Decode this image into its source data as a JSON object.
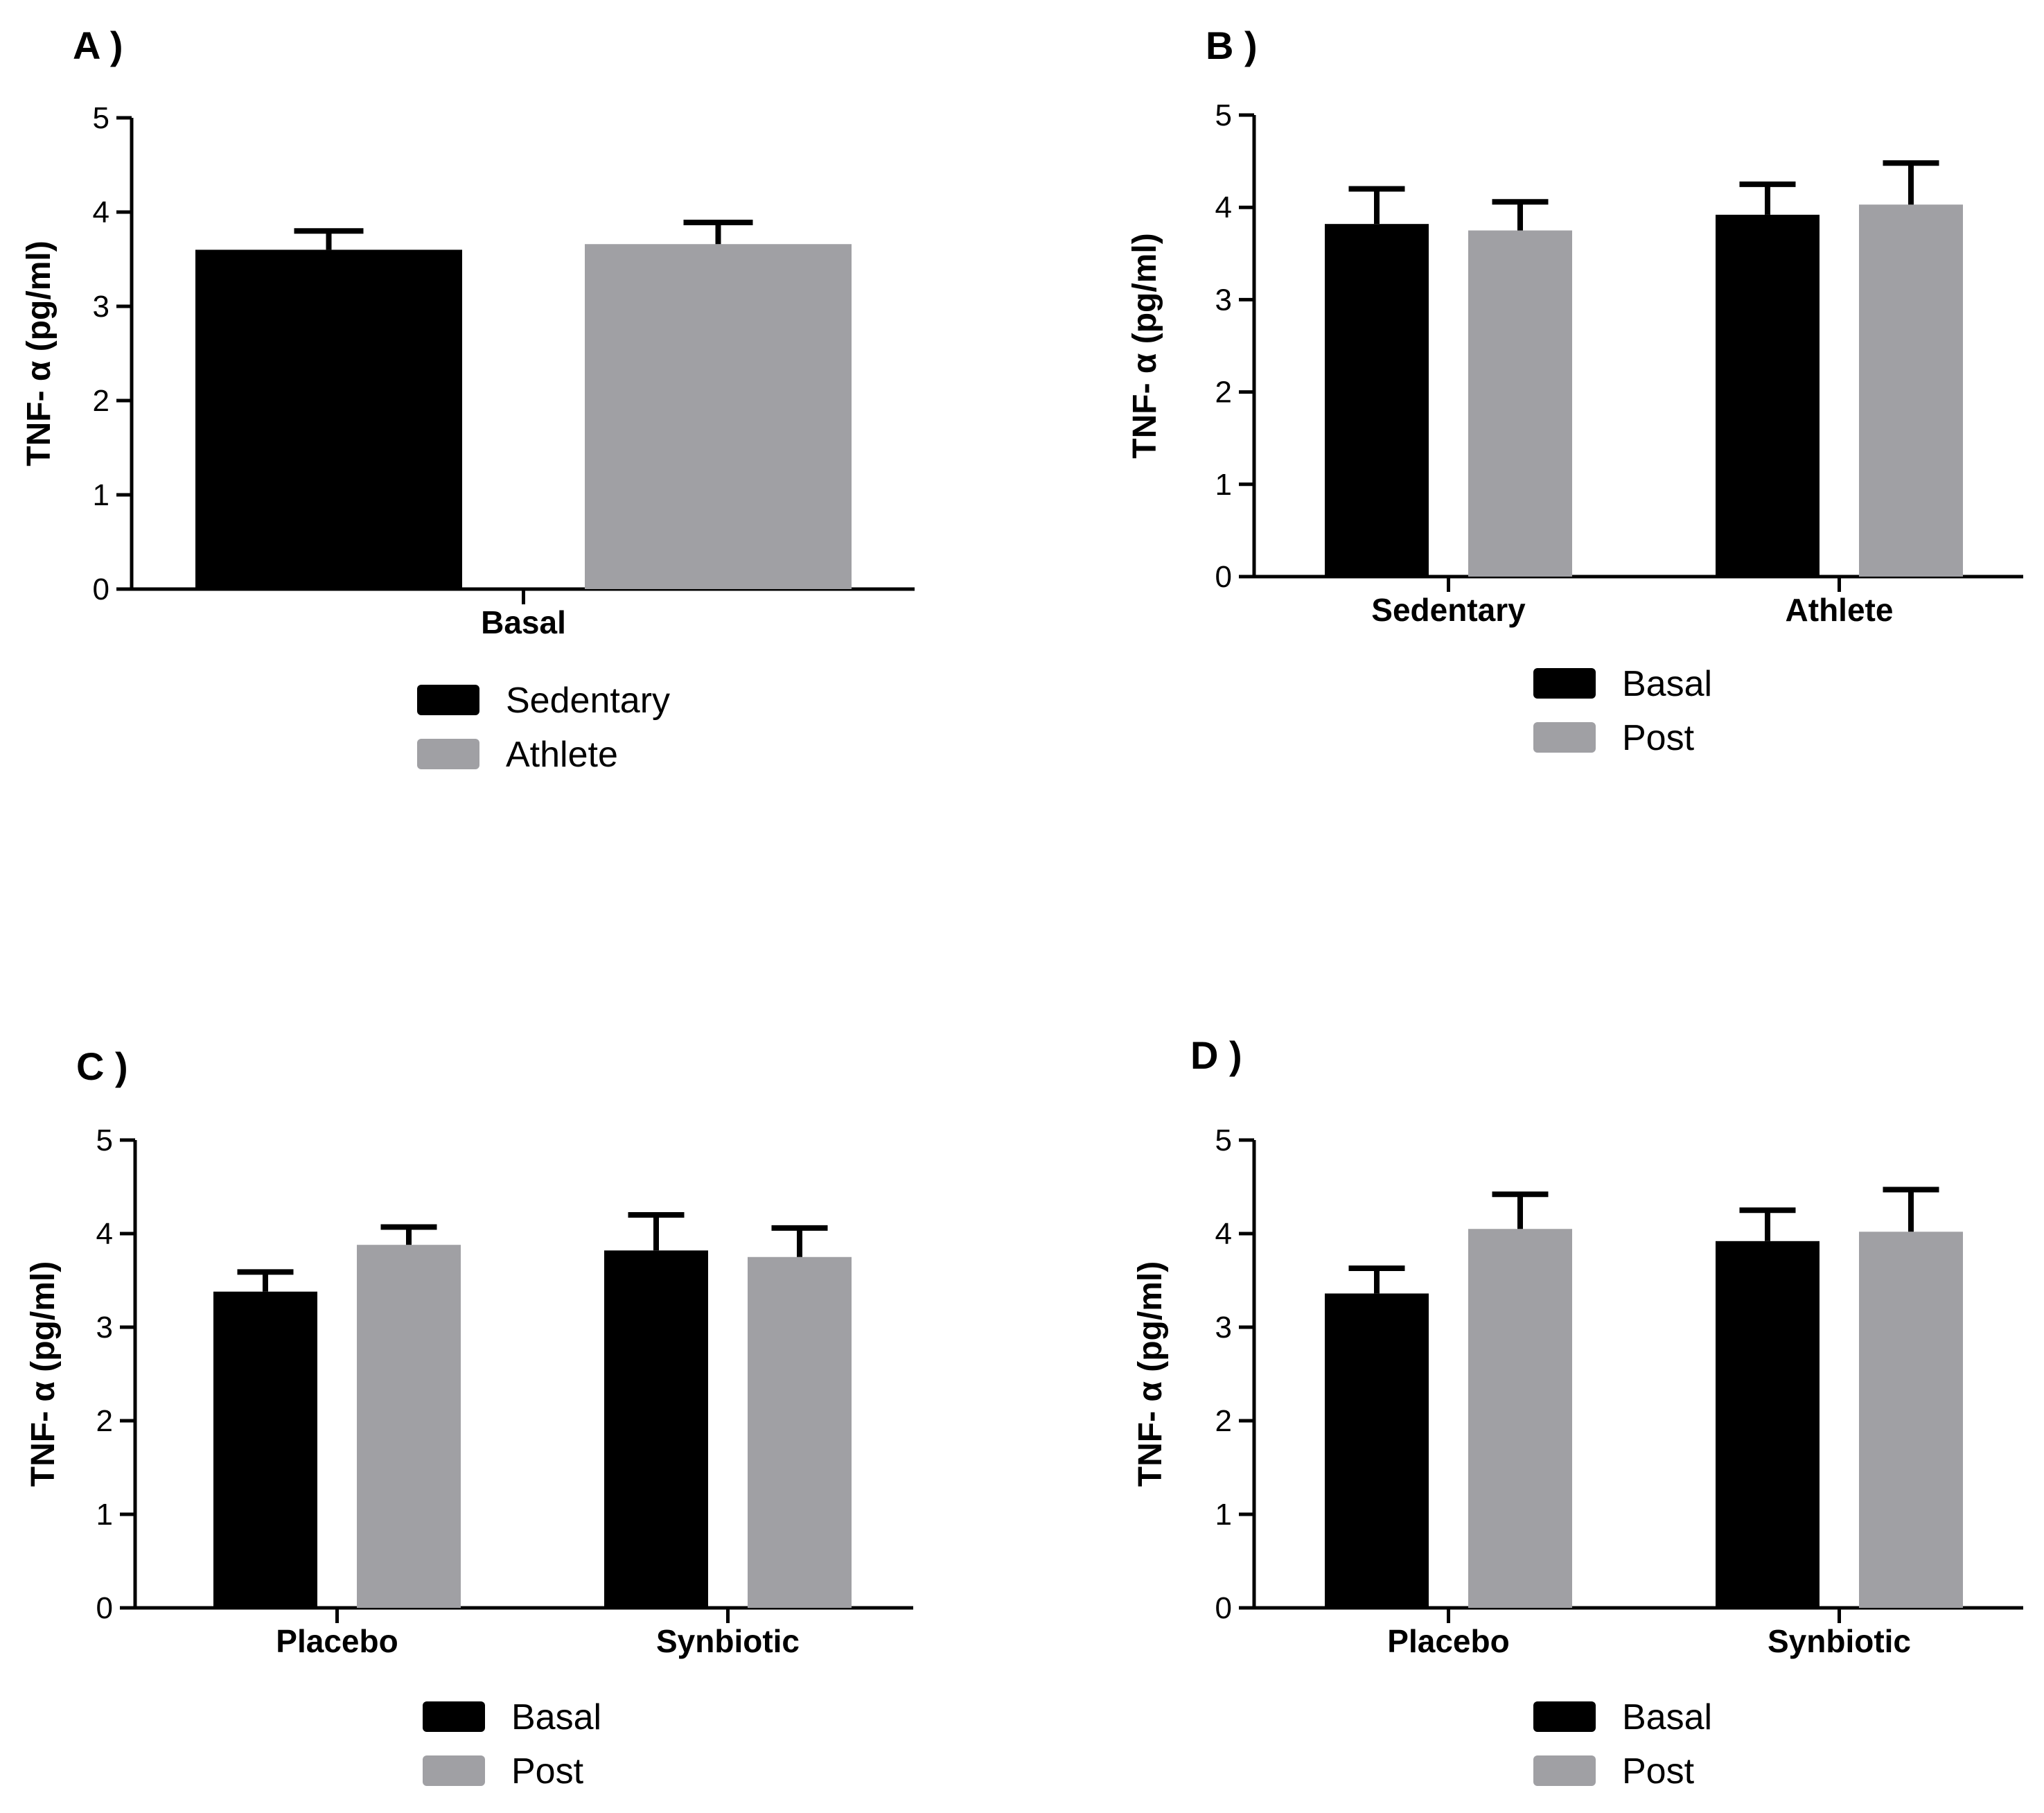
{
  "colors": {
    "black": "#000000",
    "gray": "#a0a0a4"
  },
  "chart_data": [
    {
      "panel": "A )",
      "type": "bar",
      "ylabel": "TNF- α (pg/ml)",
      "ylim": [
        0,
        5
      ],
      "yticks": [
        "0",
        "1",
        "2",
        "3",
        "4",
        "5"
      ],
      "categories": [
        "Basal"
      ],
      "series": [
        {
          "name": "Sedentary",
          "color": "#000000",
          "values": [
            3.6
          ],
          "errors": [
            0.2
          ]
        },
        {
          "name": "Athlete",
          "color": "#a0a0a4",
          "values": [
            3.66
          ],
          "errors": [
            0.23
          ]
        }
      ],
      "legend": [
        "Sedentary",
        "Athlete"
      ]
    },
    {
      "panel": "B )",
      "type": "bar",
      "ylabel": "TNF- α (pg/ml)",
      "ylim": [
        0,
        5
      ],
      "yticks": [
        "0",
        "1",
        "2",
        "3",
        "4",
        "5"
      ],
      "categories": [
        "Sedentary",
        "Athlete"
      ],
      "series": [
        {
          "name": "Basal",
          "color": "#000000",
          "values": [
            3.82,
            3.92
          ],
          "errors": [
            0.38,
            0.33
          ]
        },
        {
          "name": "Post",
          "color": "#a0a0a4",
          "values": [
            3.75,
            4.03
          ],
          "errors": [
            0.31,
            0.45
          ]
        }
      ],
      "legend": [
        "Basal",
        "Post"
      ]
    },
    {
      "panel": "C )",
      "type": "bar",
      "ylabel": "TNF- α (pg/ml)",
      "ylim": [
        0,
        5
      ],
      "yticks": [
        "0",
        "1",
        "2",
        "3",
        "4",
        "5"
      ],
      "categories": [
        "Placebo",
        "Synbiotic"
      ],
      "series": [
        {
          "name": "Basal",
          "color": "#000000",
          "values": [
            3.38,
            3.82
          ],
          "errors": [
            0.21,
            0.38
          ]
        },
        {
          "name": "Post",
          "color": "#a0a0a4",
          "values": [
            3.88,
            3.75
          ],
          "errors": [
            0.19,
            0.31
          ]
        }
      ],
      "legend": [
        "Basal",
        "Post"
      ]
    },
    {
      "panel": "D )",
      "type": "bar",
      "ylabel": "TNF- α (pg/ml)",
      "ylim": [
        0,
        5
      ],
      "yticks": [
        "0",
        "1",
        "2",
        "3",
        "4",
        "5"
      ],
      "categories": [
        "Placebo",
        "Synbiotic"
      ],
      "series": [
        {
          "name": "Basal",
          "color": "#000000",
          "values": [
            3.36,
            3.92
          ],
          "errors": [
            0.27,
            0.33
          ]
        },
        {
          "name": "Post",
          "color": "#a0a0a4",
          "values": [
            4.05,
            4.02
          ],
          "errors": [
            0.37,
            0.45
          ]
        }
      ],
      "legend": [
        "Basal",
        "Post"
      ]
    }
  ]
}
